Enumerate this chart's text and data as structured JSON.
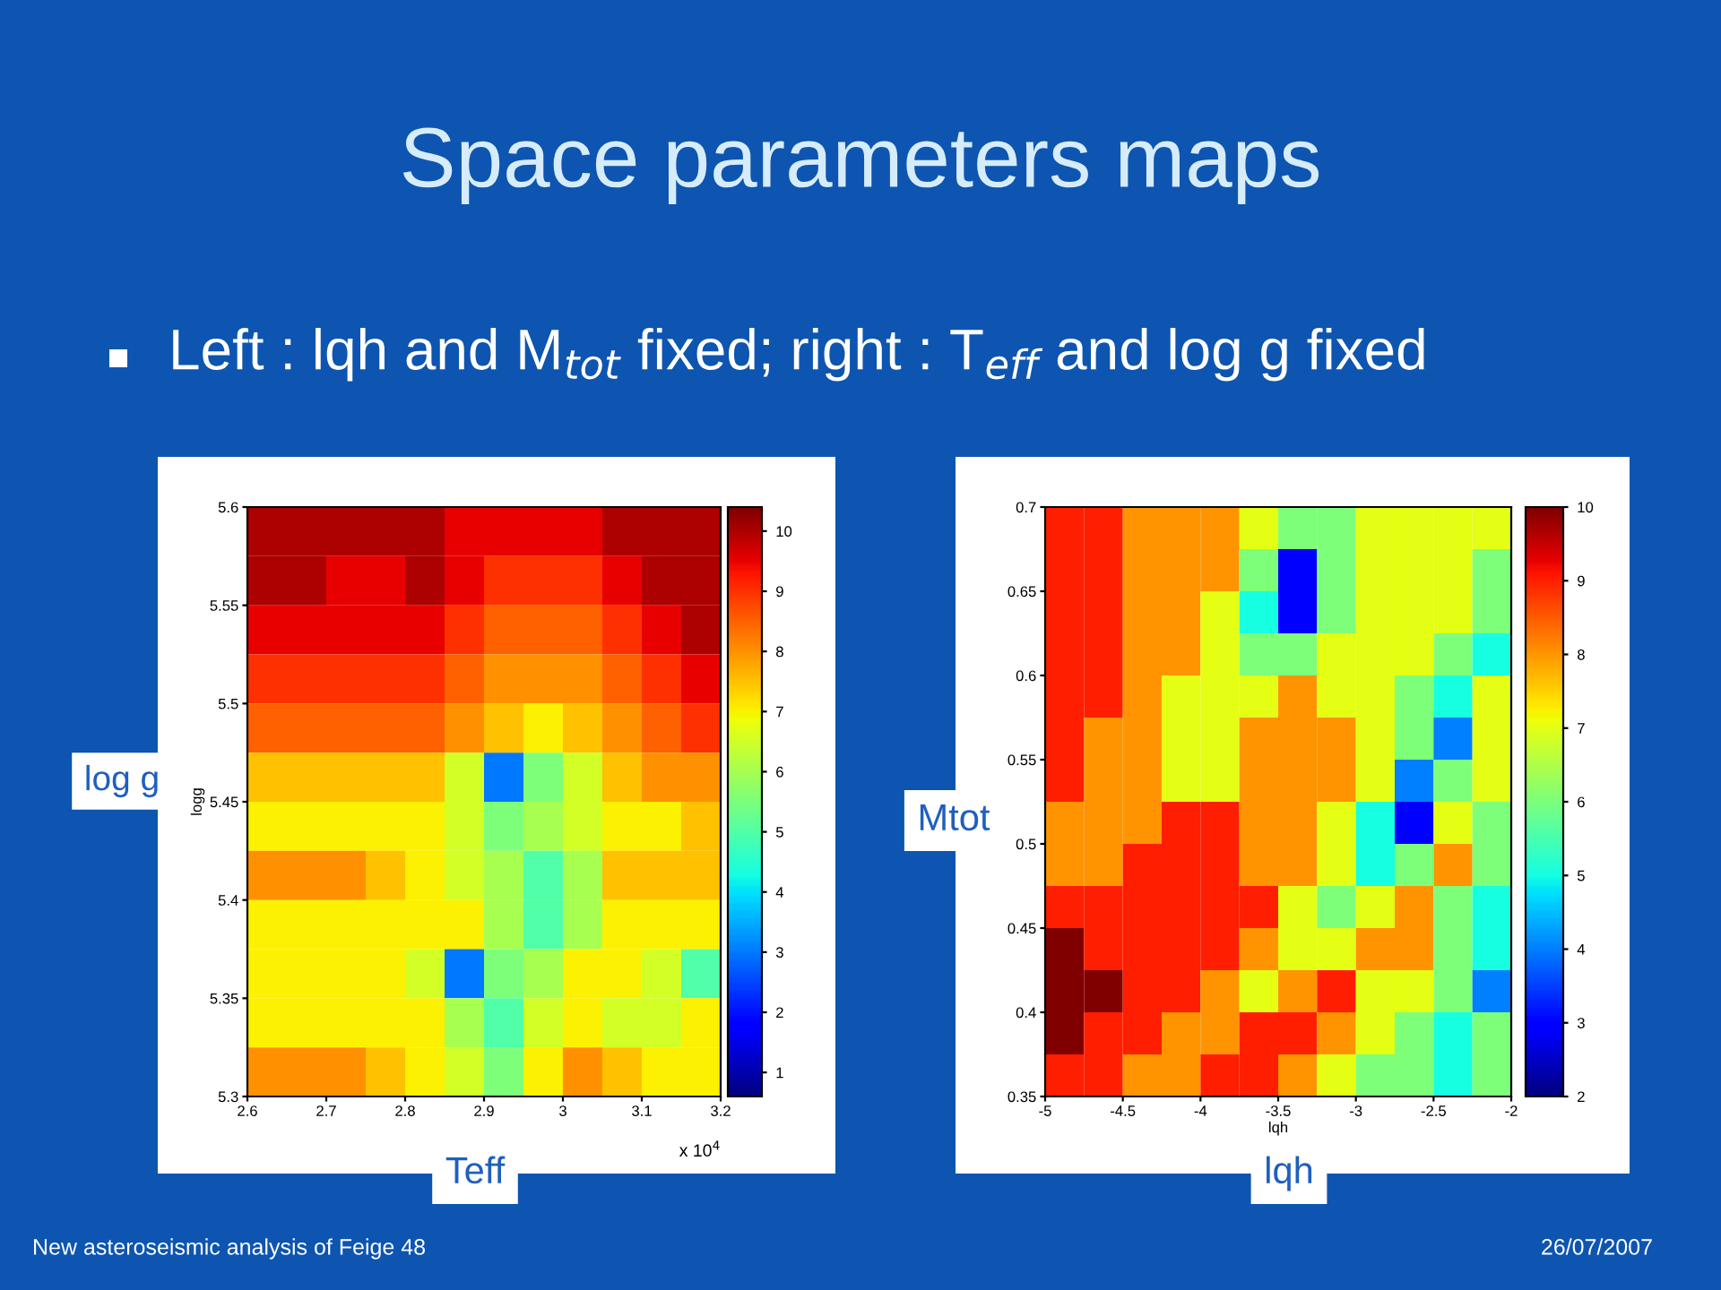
{
  "chart_data": [
    {
      "type": "heatmap",
      "title": "Space parameters maps",
      "subtitle": "Left : lqh and M$_{tot}$ fixed; right : T$_{eff}$ and log g fixed",
      "ylabel": "logg",
      "xlim": [
        2.6,
        3.2
      ],
      "xticks": [
        2.6,
        2.7,
        2.8,
        2.9,
        {
          "value": 3.0,
          "label": "3"
        },
        3.1,
        3.2
      ],
      "ylim": [
        5.3,
        5.6
      ],
      "yticks": [
        5.3,
        5.35,
        5.4,
        5.45,
        5.5,
        5.55,
        5.6
      ],
      "clim": [
        0.6,
        10.4
      ],
      "cticks": [
        1,
        2,
        3,
        4,
        5,
        6,
        7,
        8,
        9,
        10
      ],
      "cells": [
        [
          10,
          10,
          10,
          10,
          10,
          9.5,
          9.5,
          9.5,
          9.5,
          10,
          10,
          10
        ],
        [
          10,
          10,
          9.5,
          9.5,
          10,
          9.5,
          9,
          9,
          9,
          9.5,
          10,
          10
        ],
        [
          9.5,
          9.5,
          9.5,
          9.5,
          9.5,
          9,
          8.5,
          8.5,
          8.5,
          9,
          9.5,
          10
        ],
        [
          9,
          9,
          9,
          9,
          9,
          8.5,
          8,
          8,
          8,
          8.5,
          9,
          9.5
        ],
        [
          8.5,
          8.5,
          8.5,
          8.5,
          8.5,
          8,
          7.5,
          7,
          7.5,
          8,
          8.5,
          9
        ],
        [
          7.5,
          7.5,
          7.5,
          7.5,
          7.5,
          6.5,
          3,
          5.5,
          6.5,
          7.5,
          8,
          8
        ],
        [
          7,
          7,
          7,
          7,
          7,
          6.5,
          5.5,
          6,
          6.5,
          7,
          7,
          7.5
        ],
        [
          8,
          8,
          8,
          7.5,
          7,
          6.5,
          6,
          5,
          6,
          7.5,
          7.5,
          7.5
        ],
        [
          7,
          7,
          7,
          7,
          7,
          7,
          6,
          5,
          6,
          7,
          7,
          7
        ],
        [
          7,
          7,
          7,
          7,
          6.5,
          3,
          5.5,
          6,
          7,
          7,
          6.5,
          5
        ],
        [
          7,
          7,
          7,
          7,
          7,
          6,
          5,
          6.5,
          7,
          6.5,
          6.5,
          7
        ],
        [
          8,
          8,
          8,
          7.5,
          7,
          6.5,
          5.5,
          7,
          8,
          7.5,
          7,
          7
        ]
      ],
      "annotations": [
        "x 10$^{4}$",
        "log g",
        "Teff",
        "New asteroseismic analysis of Feige 48",
        "26/07/2007"
      ]
    },
    {
      "type": "heatmap",
      "xlabel": "lqh",
      "xlim": [
        -5,
        -2
      ],
      "xticks": [
        {
          "value": -5,
          "label": "-5"
        },
        {
          "value": -4.5,
          "label": "-4.5"
        },
        {
          "value": -4,
          "label": "-4"
        },
        {
          "value": -3.5,
          "label": "-3.5"
        },
        {
          "value": -3,
          "label": "-3"
        },
        {
          "value": -2.5,
          "label": "-2.5"
        },
        {
          "value": -2,
          "label": "-2"
        }
      ],
      "ylim": [
        0.35,
        0.7
      ],
      "yticks": [
        0.35,
        0.4,
        0.45,
        0.5,
        0.55,
        0.6,
        0.65,
        0.7
      ],
      "clim": [
        2,
        10
      ],
      "cticks": [
        2,
        3,
        4,
        5,
        6,
        7,
        8,
        9,
        10
      ],
      "cells": [
        [
          9,
          9,
          8,
          8,
          8,
          7,
          6,
          6,
          7,
          7,
          7,
          7
        ],
        [
          9,
          9,
          8,
          8,
          8,
          6,
          3,
          6,
          7,
          7,
          7,
          6
        ],
        [
          9,
          9,
          8,
          8,
          7,
          5,
          3,
          6,
          7,
          7,
          7,
          6
        ],
        [
          9,
          9,
          8,
          8,
          7,
          6,
          6,
          7,
          7,
          7,
          6,
          5
        ],
        [
          9,
          9,
          8,
          7,
          7,
          7,
          8,
          7,
          7,
          6,
          5,
          7
        ],
        [
          9,
          8,
          8,
          7,
          7,
          8,
          8,
          8,
          7,
          6,
          4,
          7
        ],
        [
          9,
          8,
          8,
          7,
          7,
          8,
          8,
          8,
          7,
          4,
          6,
          7
        ],
        [
          8,
          8,
          8,
          9,
          9,
          8,
          8,
          7,
          5,
          3,
          7,
          6
        ],
        [
          8,
          8,
          9,
          9,
          9,
          8,
          8,
          7,
          5,
          6,
          8,
          6
        ],
        [
          9,
          9,
          9,
          9,
          9,
          9,
          7,
          6,
          7,
          8,
          6,
          5
        ],
        [
          10,
          9,
          9,
          9,
          9,
          8,
          7,
          7,
          8,
          8,
          6,
          5
        ],
        [
          10,
          10,
          9,
          9,
          8,
          7,
          8,
          9,
          7,
          7,
          6,
          4
        ],
        [
          10,
          9,
          9,
          8,
          8,
          9,
          9,
          8,
          7,
          6,
          5,
          6
        ],
        [
          9,
          9,
          8,
          8,
          9,
          9,
          8,
          7,
          6,
          6,
          5,
          6
        ]
      ],
      "annotations": [
        "Mtot",
        "lqh"
      ]
    }
  ]
}
